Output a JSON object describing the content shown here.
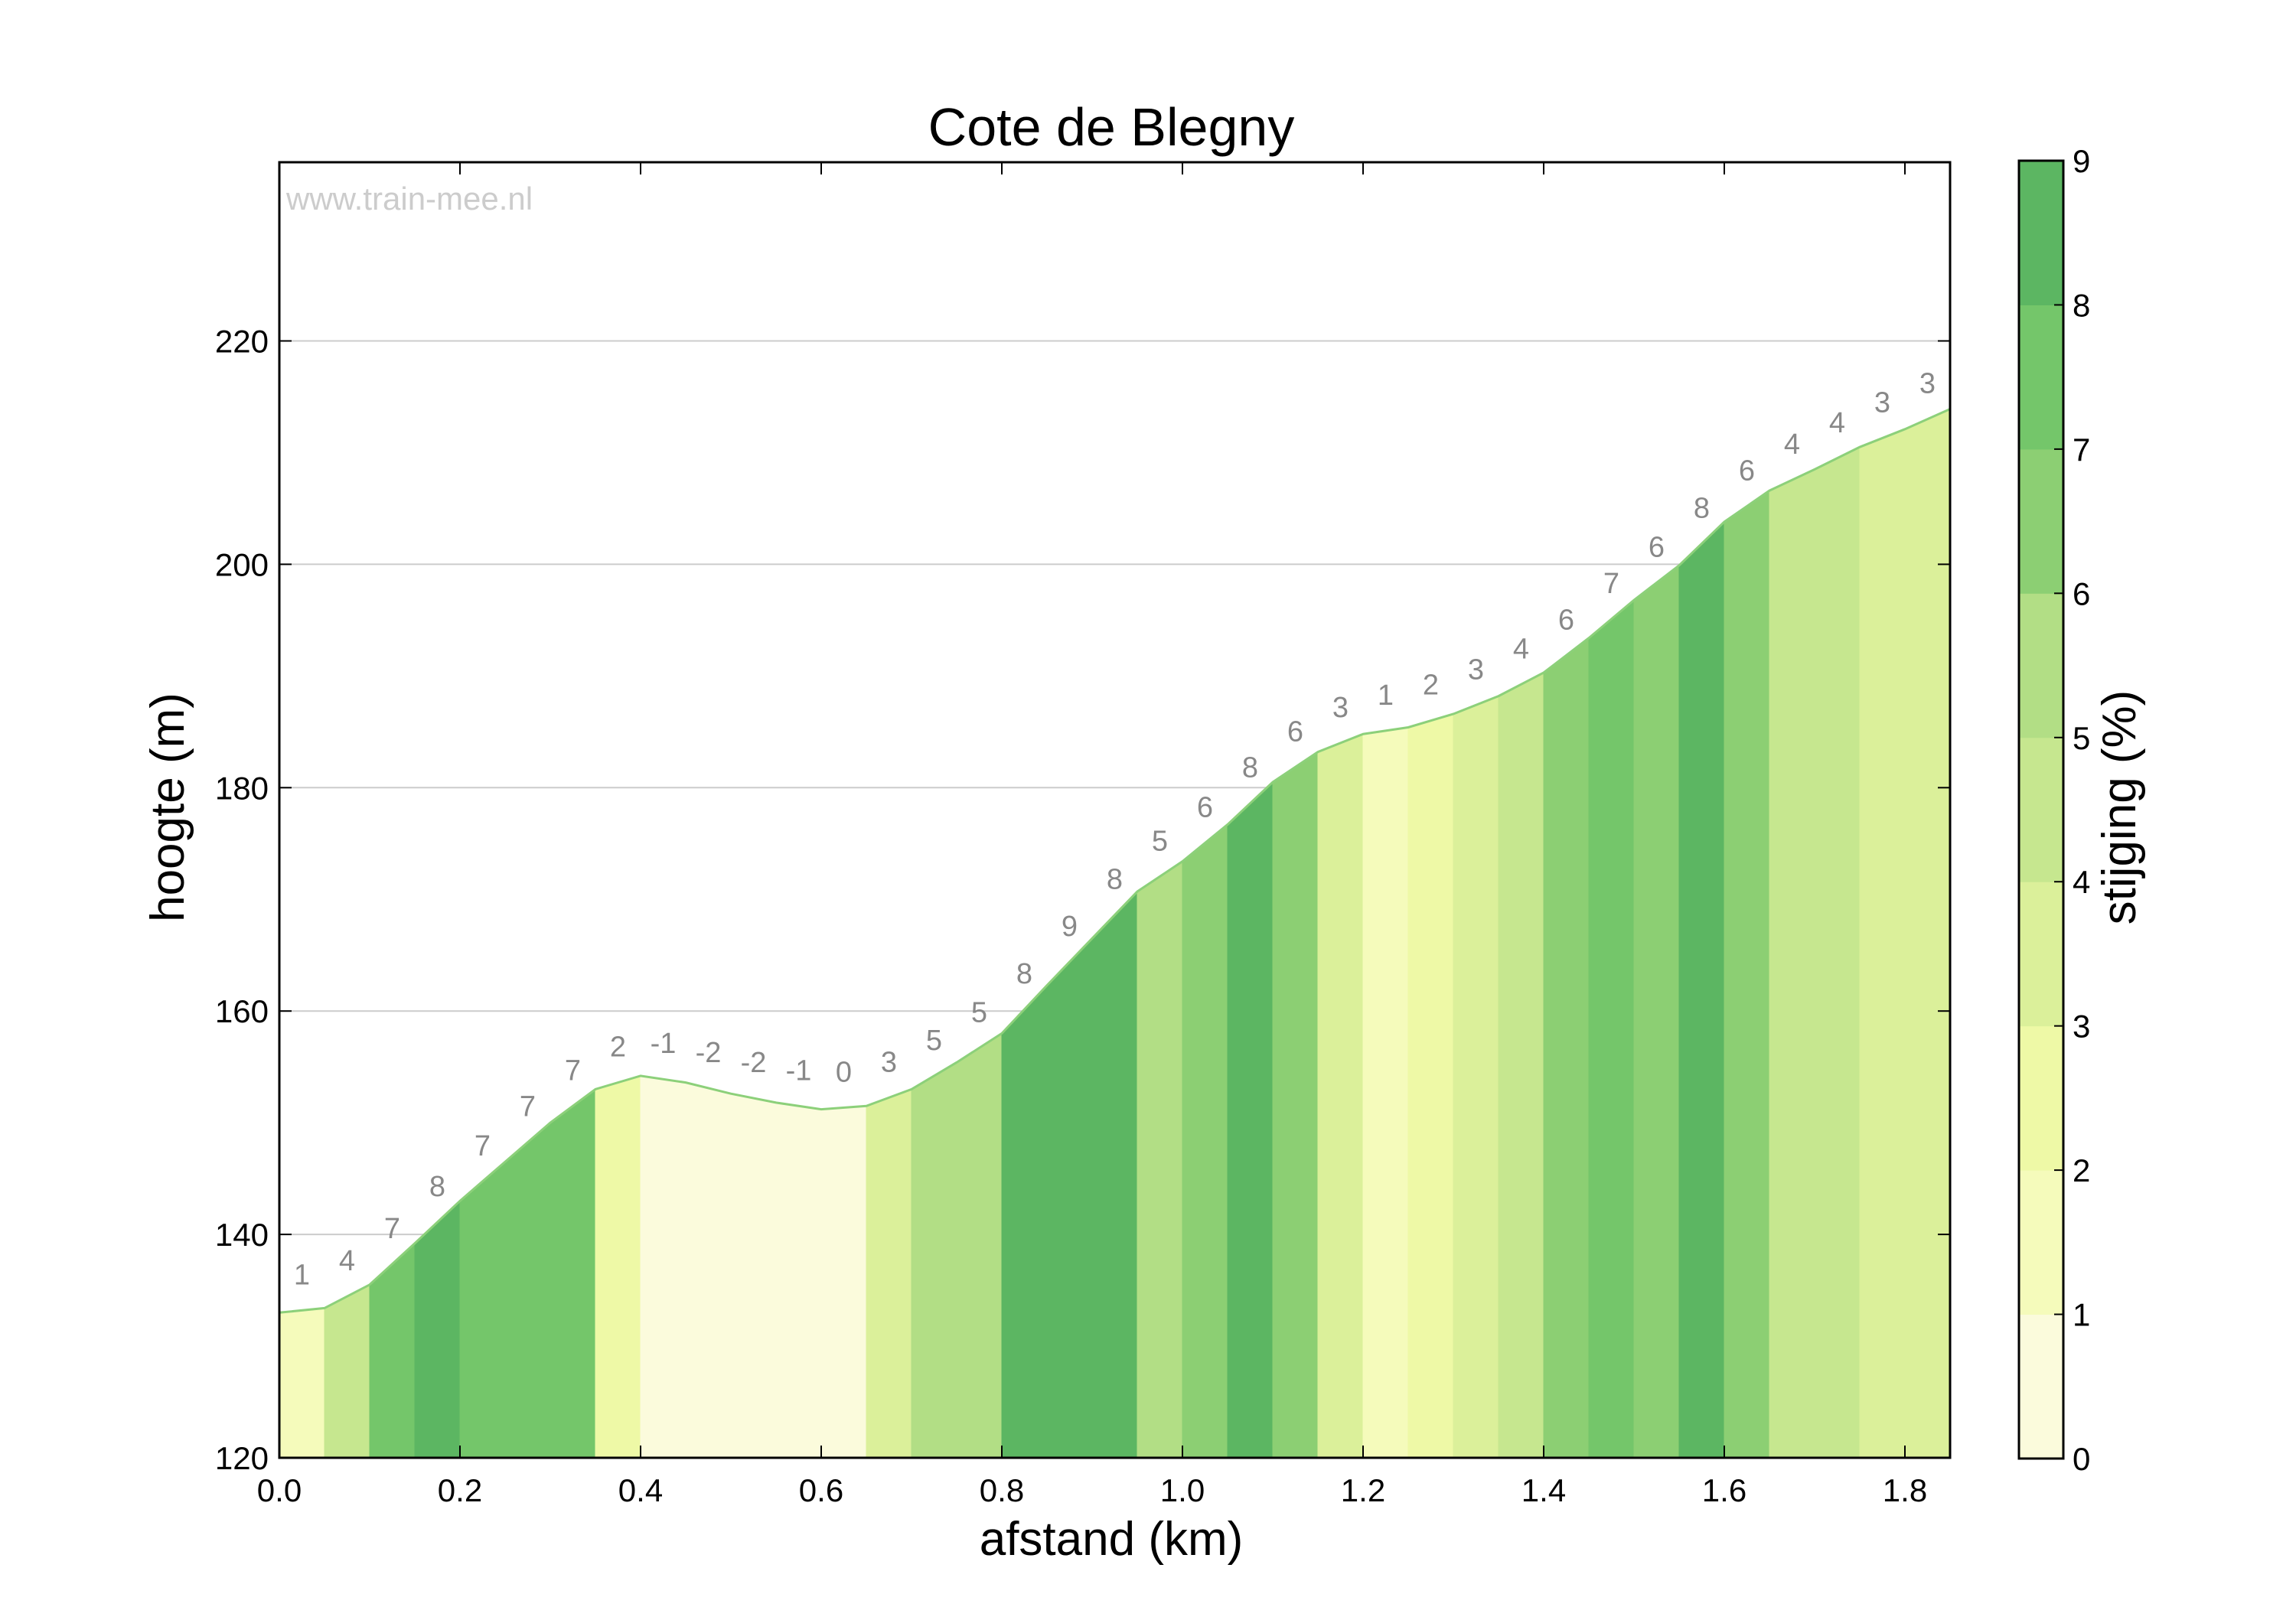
{
  "chart_data": {
    "type": "area",
    "title": "Cote de Blegny",
    "watermark": "www.train-mee.nl",
    "xlabel": "afstand (km)",
    "ylabel": "hoogte (m)",
    "colorbar_label": "stijging (%)",
    "xlim": [
      0,
      1.85
    ],
    "ylim": [
      120,
      236
    ],
    "x_ticks": [
      "0.0",
      "0.2",
      "0.4",
      "0.6",
      "0.8",
      "1.0",
      "1.2",
      "1.4",
      "1.6",
      "1.8"
    ],
    "y_ticks": [
      "120",
      "140",
      "160",
      "180",
      "200",
      "220"
    ],
    "colorbar_ticks": [
      "0",
      "1",
      "2",
      "3",
      "4",
      "5",
      "6",
      "7",
      "8",
      "9"
    ],
    "grid": true,
    "colors": [
      "#fbfbdc",
      "#f5fbbb",
      "#eef9a6",
      "#dbf09a",
      "#c6e78f",
      "#b2de85",
      "#8ccf73",
      "#74c66a",
      "#5cb662"
    ],
    "x": [
      0.0,
      0.05,
      0.1,
      0.15,
      0.2,
      0.25,
      0.3,
      0.35,
      0.4,
      0.45,
      0.5,
      0.55,
      0.6,
      0.65,
      0.7,
      0.75,
      0.8,
      0.85,
      0.9,
      0.95,
      1.0,
      1.05,
      1.1,
      1.15,
      1.2,
      1.25,
      1.3,
      1.35,
      1.4,
      1.45,
      1.5,
      1.55,
      1.6,
      1.65,
      1.7,
      1.75,
      1.8,
      1.85
    ],
    "elevation": [
      133.0,
      133.4,
      135.5,
      139.2,
      143.0,
      146.5,
      150.0,
      153.0,
      154.2,
      153.6,
      152.6,
      151.8,
      151.2,
      151.5,
      153.0,
      155.4,
      158.0,
      162.3,
      166.5,
      170.7,
      173.4,
      176.7,
      180.5,
      183.2,
      184.8,
      185.4,
      186.6,
      188.2,
      190.3,
      193.4,
      196.8,
      199.9,
      203.8,
      206.6,
      208.5,
      210.5,
      212.1,
      213.9
    ],
    "grades": [
      "1",
      "4",
      "7",
      "8",
      "7",
      "7",
      "7",
      "2",
      "-1",
      "-2",
      "-2",
      "-1",
      "0",
      "3",
      "5",
      "5",
      "8",
      "9",
      "8",
      "5",
      "6",
      "8",
      "6",
      "3",
      "1",
      "2",
      "3",
      "4",
      "6",
      "7",
      "6",
      "8",
      "6",
      "4",
      "4",
      "3",
      "3"
    ]
  }
}
